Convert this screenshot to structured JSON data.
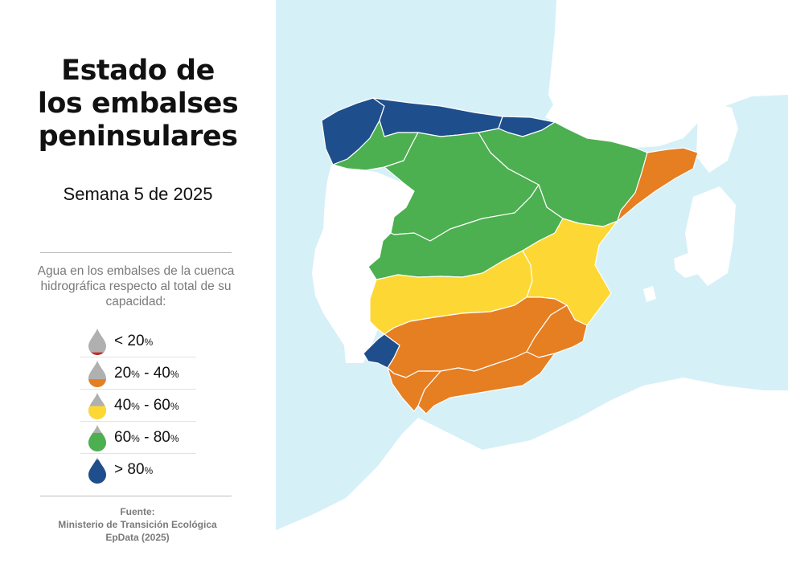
{
  "title": {
    "line1": "Estado de",
    "line2": "los embalses",
    "line3": "peninsulares"
  },
  "subtitle": "Semana 5 de 2025",
  "description": "Agua en los embalses de la cuenca hidrográfica respecto al total de su capacidad:",
  "legend": [
    {
      "pre": "< 20",
      "unit1": "%",
      "mid": "",
      "unit2": "",
      "color": "#c62828",
      "level": 0.1
    },
    {
      "pre": "20",
      "unit1": "%",
      "mid": " - 40",
      "unit2": "%",
      "color": "#e67e22",
      "level": 0.3
    },
    {
      "pre": "40",
      "unit1": "%",
      "mid": " - 60",
      "unit2": "%",
      "color": "#fdd835",
      "level": 0.5
    },
    {
      "pre": "60",
      "unit1": "%",
      "mid": " - 80",
      "unit2": "%",
      "color": "#4caf50",
      "level": 0.7
    },
    {
      "pre": "> 80",
      "unit1": "%",
      "mid": "",
      "unit2": "",
      "color": "#1f4e8c",
      "level": 0.9
    }
  ],
  "source": {
    "heading": "Fuente:",
    "line1": "Ministerio de Transición Ecológica",
    "line2": "EpData (2025)"
  },
  "colors": {
    "sea": "#d6f0f8",
    "land_other": "#ffffff",
    "over_80": "#1f4e8c",
    "from_60_to_80": "#4caf50",
    "from_40_to_60": "#fdd835",
    "from_20_to_40": "#e67e22",
    "under_20": "#c62828",
    "drop_empty": "#b0b0b0"
  },
  "basins": [
    {
      "region": "galicia-costa",
      "class": "over_80"
    },
    {
      "region": "cantabrico",
      "class": "over_80"
    },
    {
      "region": "pais-vasco",
      "class": "over_80"
    },
    {
      "region": "tinto-odiel-piedras",
      "class": "over_80"
    },
    {
      "region": "mino-sil",
      "class": "from_60_to_80"
    },
    {
      "region": "duero",
      "class": "from_60_to_80"
    },
    {
      "region": "ebro",
      "class": "from_60_to_80"
    },
    {
      "region": "tajo",
      "class": "from_60_to_80"
    },
    {
      "region": "guadiana",
      "class": "from_40_to_60"
    },
    {
      "region": "jucar",
      "class": "from_40_to_60"
    },
    {
      "region": "cataluna",
      "class": "from_20_to_40"
    },
    {
      "region": "guadalquivir",
      "class": "from_20_to_40"
    },
    {
      "region": "segura",
      "class": "from_20_to_40"
    },
    {
      "region": "mediterranea-andaluza",
      "class": "from_20_to_40"
    },
    {
      "region": "guadalete-barbate",
      "class": "from_20_to_40"
    }
  ]
}
